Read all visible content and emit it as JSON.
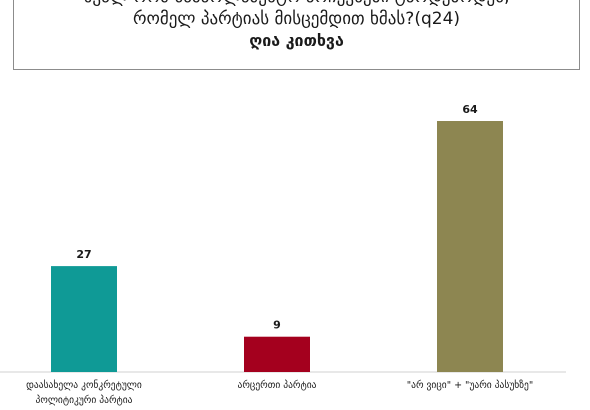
{
  "title": {
    "line1": "ხვალ რომ საპარლამენტო არჩევნები ტარდებოდეს,",
    "line2": "რომელ პარტიას მისცემდით ხმას?(q24)",
    "line3": "ღია კითხვა"
  },
  "chart_data": {
    "type": "bar",
    "categories": [
      [
        "დაასახელა კონკრეტული",
        "პოლიტიკური პარტია"
      ],
      [
        "არცერთი პარტია"
      ],
      [
        "\"არ ვიცი\" + \"უარი პასუხზე\""
      ]
    ],
    "values": [
      27,
      9,
      64
    ],
    "colors": [
      "#0f9a96",
      "#a4001e",
      "#8d8651"
    ],
    "ylim": [
      0,
      64
    ],
    "grid": false,
    "legend": "none"
  }
}
